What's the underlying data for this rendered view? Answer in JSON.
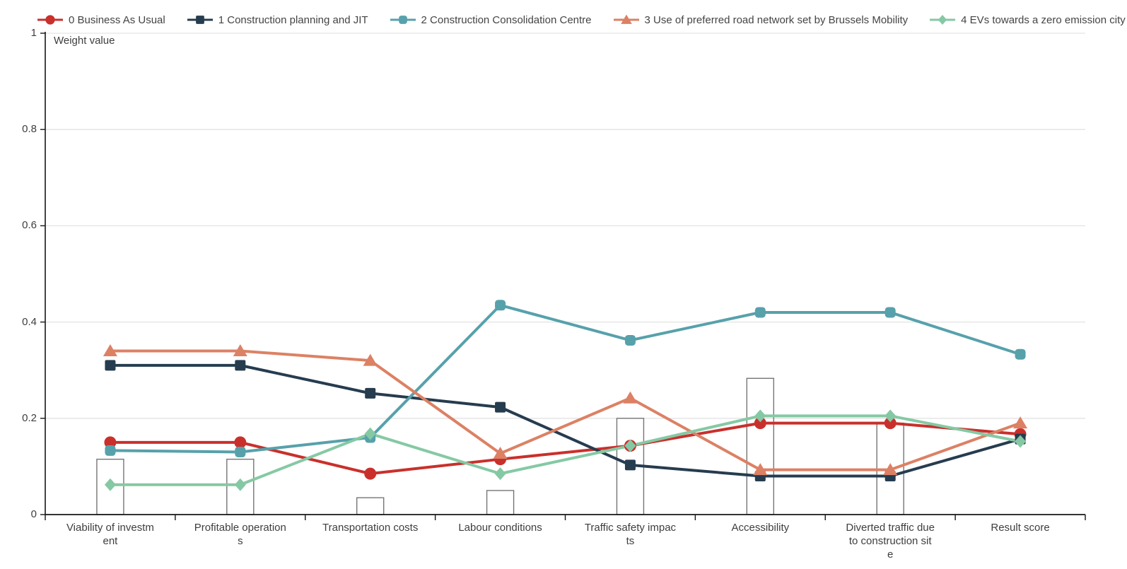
{
  "legend": {
    "items": [
      {
        "label": "0 Business As Usual",
        "marker": "circle",
        "color": "#c9302c"
      },
      {
        "label": "1 Construction planning and JIT",
        "marker": "square",
        "color": "#263c4f"
      },
      {
        "label": "2 Construction Consolidation Centre",
        "marker": "square-rounded",
        "color": "#57a1ab"
      },
      {
        "label": "3 Use of preferred road network set by Brussels Mobility",
        "marker": "triangle",
        "color": "#dc8164"
      },
      {
        "label": "4 EVs towards a zero emission city",
        "marker": "diamond",
        "color": "#85c9a4"
      }
    ]
  },
  "chart_data": {
    "type": "line",
    "title": "Weight value",
    "categories": [
      "Viability of investment",
      "Profitable operations",
      "Transportation costs",
      "Labour conditions",
      "Traffic safety impacts",
      "Accessibility",
      "Diverted traffic due to construction site",
      "Result score"
    ],
    "category_display_lines": [
      [
        "Viability of investm",
        "ent"
      ],
      [
        "Profitable operation",
        "s"
      ],
      [
        "Transportation costs"
      ],
      [
        "Labour conditions"
      ],
      [
        "Traffic safety impac",
        "ts"
      ],
      [
        "Accessibility"
      ],
      [
        "Diverted traffic due",
        "to construction sit",
        "e"
      ],
      [
        "Result score"
      ]
    ],
    "series": [
      {
        "name": "0 Business As Usual",
        "marker": "circle",
        "color": "#c9302c",
        "values": [
          0.15,
          0.15,
          0.085,
          0.115,
          0.143,
          0.19,
          0.19,
          0.167
        ]
      },
      {
        "name": "1 Construction planning and JIT",
        "marker": "square",
        "color": "#263c4f",
        "values": [
          0.31,
          0.31,
          0.252,
          0.223,
          0.103,
          0.08,
          0.08,
          0.157
        ]
      },
      {
        "name": "2 Construction Consolidation Centre",
        "marker": "square-rounded",
        "color": "#57a1ab",
        "values": [
          0.133,
          0.13,
          0.16,
          0.435,
          0.362,
          0.42,
          0.42,
          0.333
        ]
      },
      {
        "name": "3 Use of preferred road network set by Brussels Mobility",
        "marker": "triangle",
        "color": "#dc8164",
        "values": [
          0.34,
          0.34,
          0.32,
          0.127,
          0.242,
          0.093,
          0.093,
          0.19
        ]
      },
      {
        "name": "4 EVs towards a zero emission city",
        "marker": "diamond",
        "color": "#85c9a4",
        "values": [
          0.062,
          0.062,
          0.168,
          0.085,
          0.143,
          0.205,
          0.205,
          0.152
        ]
      }
    ],
    "bars": {
      "name": "criterion weight bars",
      "values": [
        0.115,
        0.115,
        0.035,
        0.05,
        0.2,
        0.283,
        0.19,
        null
      ]
    },
    "ylabel": "Weight value",
    "ylim": [
      0,
      1
    ],
    "yticks": [
      0,
      0.2,
      0.4,
      0.6,
      0.8,
      1
    ],
    "ytick_labels": [
      "0",
      "0.2",
      "0.4",
      "0.6",
      "0.8",
      "1"
    ],
    "grid": true,
    "legend_position": "top"
  },
  "colors": {
    "gridline": "#e3e3e3",
    "axis": "#161616",
    "bar_fill": "#ffffff",
    "bar_stroke": "#757575",
    "text": "#3e3e3e"
  }
}
